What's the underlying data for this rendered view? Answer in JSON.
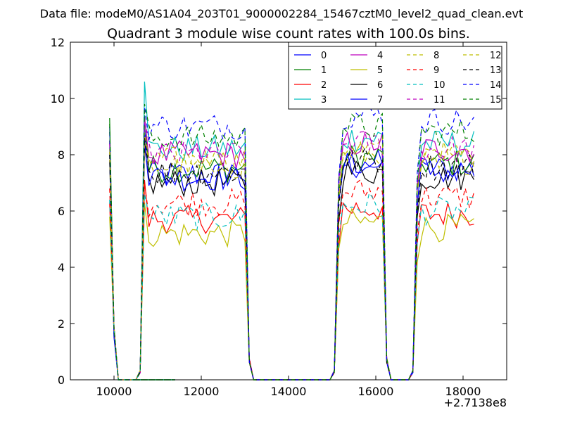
{
  "header": {
    "file_label": "Data file: modeM0/AS1A04_203T01_9000002284_15467cztM0_level2_quad_clean.evt"
  },
  "chart_data": {
    "type": "line",
    "title": "Quadrant 3 module wise count rates with 100.0s bins.",
    "xlabel": "",
    "ylabel": "",
    "x_offset_label": "+2.7138e8",
    "xlim": [
      9000,
      19000
    ],
    "ylim": [
      0,
      12
    ],
    "xticks": [
      10000,
      12000,
      14000,
      16000,
      18000
    ],
    "xtick_labels": [
      "10000",
      "12000",
      "14000",
      "16000",
      "18000"
    ],
    "yticks": [
      0,
      2,
      4,
      6,
      8,
      10,
      12
    ],
    "ytick_labels": [
      "0",
      "2",
      "4",
      "6",
      "8",
      "10",
      "12"
    ],
    "grid": false,
    "legend_position": "top-right",
    "segments": [
      [
        9900,
        16
      ],
      [
        10700,
        24
      ],
      [
        15150,
        11
      ],
      [
        16950,
        14
      ]
    ],
    "zero_gaps": [
      [
        10100,
        10600
      ],
      [
        13100,
        15100
      ],
      [
        16200,
        16900
      ]
    ],
    "series": [
      {
        "name": "0",
        "color": "#0000ff",
        "dash": "solid",
        "level": 7.3,
        "start": 9.0,
        "spike": 8.9
      },
      {
        "name": "1",
        "color": "#008000",
        "dash": "solid",
        "level": 7.5,
        "start": 9.3,
        "spike": 9.4
      },
      {
        "name": "2",
        "color": "#ff0000",
        "dash": "solid",
        "level": 5.7,
        "start": 6.3,
        "spike": 7.1
      },
      {
        "name": "3",
        "color": "#00bfbf",
        "dash": "solid",
        "level": 8.2,
        "start": 8.5,
        "spike": 10.6
      },
      {
        "name": "4",
        "color": "#bf00bf",
        "dash": "solid",
        "level": 8.0,
        "start": 8.4,
        "spike": 9.3
      },
      {
        "name": "5",
        "color": "#bfbf00",
        "dash": "solid",
        "level": 5.2,
        "start": 5.8,
        "spike": 6.3
      },
      {
        "name": "6",
        "color": "#000000",
        "dash": "solid",
        "level": 7.0,
        "start": 7.8,
        "spike": 8.3
      },
      {
        "name": "7",
        "color": "#0000ff",
        "dash": "solid",
        "level": 7.2,
        "start": 8.1,
        "spike": 8.5
      },
      {
        "name": "8",
        "color": "#bfbf00",
        "dash": "dashed",
        "level": 7.8,
        "start": 8.1,
        "spike": 8.6
      },
      {
        "name": "9",
        "color": "#ff0000",
        "dash": "dashed",
        "level": 6.3,
        "start": 6.8,
        "spike": 7.0
      },
      {
        "name": "10",
        "color": "#00bfbf",
        "dash": "dashed",
        "level": 5.8,
        "start": 6.4,
        "spike": 6.6
      },
      {
        "name": "11",
        "color": "#bf00bf",
        "dash": "dashed",
        "level": 8.0,
        "start": 8.5,
        "spike": 9.2
      },
      {
        "name": "12",
        "color": "#bfbf00",
        "dash": "dashed",
        "level": 7.6,
        "start": 8.2,
        "spike": 8.8
      },
      {
        "name": "13",
        "color": "#000000",
        "dash": "dashed",
        "level": 7.4,
        "start": 8.0,
        "spike": 8.6
      },
      {
        "name": "14",
        "color": "#0000ff",
        "dash": "dashed",
        "level": 9.0,
        "start": 8.8,
        "spike": 9.7
      },
      {
        "name": "15",
        "color": "#008000",
        "dash": "dashed",
        "level": 8.6,
        "start": 9.1,
        "spike": 9.8
      }
    ]
  }
}
